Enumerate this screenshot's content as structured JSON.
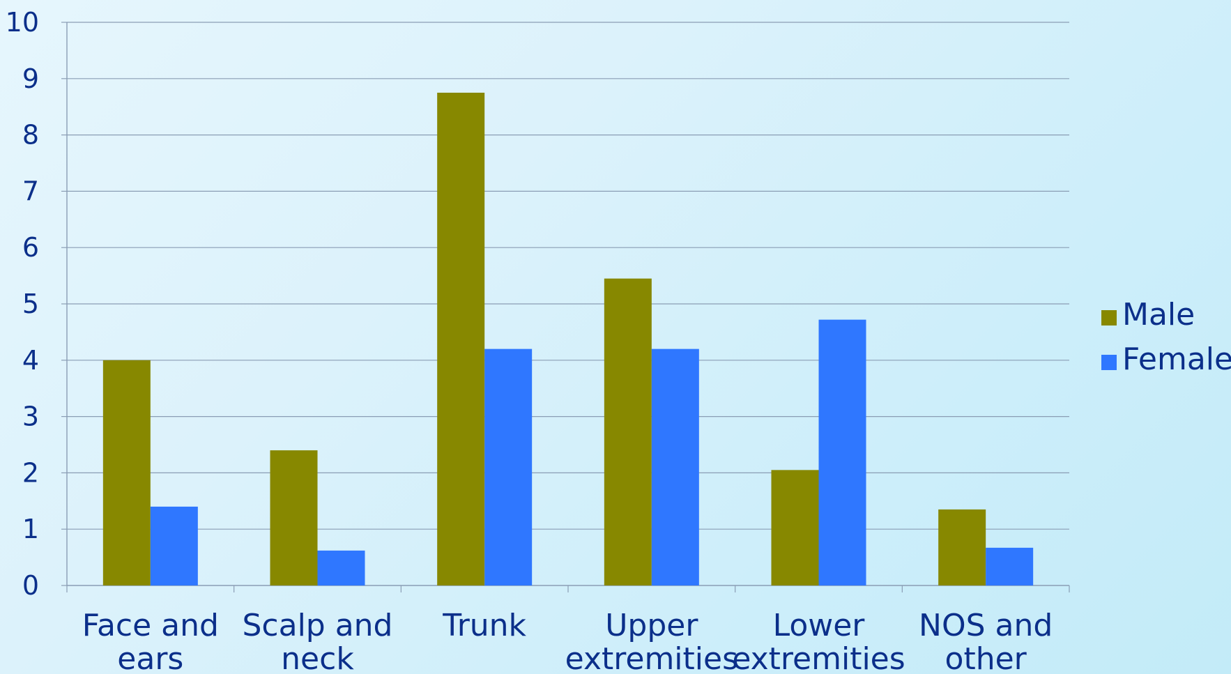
{
  "chart_data": {
    "type": "bar",
    "categories": [
      [
        "Face and",
        "ears"
      ],
      [
        "Scalp and",
        "neck"
      ],
      [
        "Trunk"
      ],
      [
        "Upper",
        "extremities"
      ],
      [
        "Lower",
        "extremities"
      ],
      [
        "NOS and",
        "other"
      ]
    ],
    "series": [
      {
        "name": "Male",
        "color": "#878800",
        "values": [
          4.0,
          2.4,
          8.75,
          5.45,
          2.05,
          1.35
        ]
      },
      {
        "name": "Female",
        "color": "#2f77ff",
        "values": [
          1.4,
          0.62,
          4.2,
          4.2,
          4.72,
          0.67
        ]
      }
    ],
    "ylim": [
      0,
      10
    ],
    "yticks": [
      0,
      1,
      2,
      3,
      4,
      5,
      6,
      7,
      8,
      9,
      10
    ],
    "grid": true,
    "legend": "right"
  }
}
